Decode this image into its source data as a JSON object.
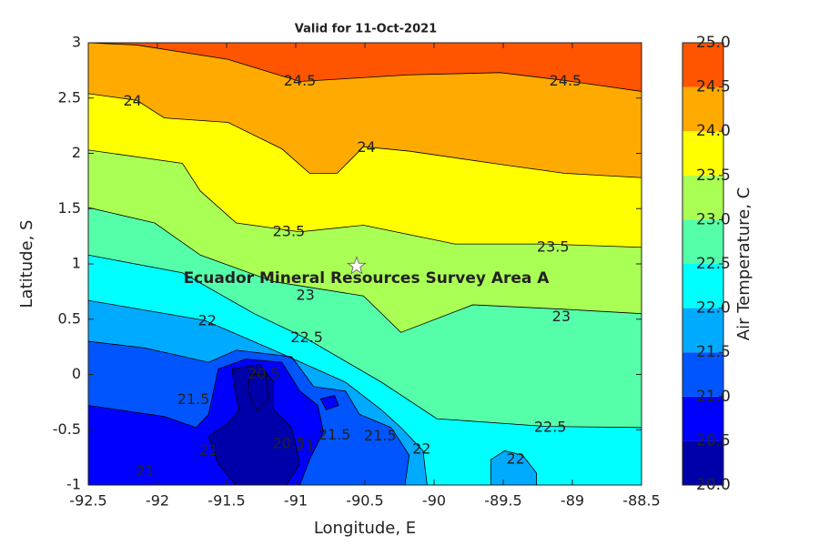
{
  "chart_data": {
    "type": "contour",
    "title": "Valid for 11-Oct-2021",
    "xlabel": "Longitude, E",
    "ylabel": "Latitude, S",
    "colorbar_label": "Air Temperature, C",
    "xlim": [
      -92.5,
      -88.5
    ],
    "ylim": [
      -1,
      3
    ],
    "xticks": [
      -92.5,
      -92,
      -91.5,
      -91,
      -90.5,
      -90,
      -89.5,
      -89,
      -88.5
    ],
    "yticks": [
      -1,
      -0.5,
      0,
      0.5,
      1,
      1.5,
      2,
      2.5,
      3
    ],
    "clim": [
      20,
      25
    ],
    "cticks": [
      {
        "value": 20,
        "label": "20.0"
      },
      {
        "value": 20.5,
        "label": "20.5"
      },
      {
        "value": 21,
        "label": "21.0"
      },
      {
        "value": 21.5,
        "label": "21.5"
      },
      {
        "value": 22,
        "label": "22.0"
      },
      {
        "value": 22.5,
        "label": "22.5"
      },
      {
        "value": 23,
        "label": "23.0"
      },
      {
        "value": 23.5,
        "label": "23.5"
      },
      {
        "value": 24,
        "label": "24.0"
      },
      {
        "value": 24.5,
        "label": "24.5"
      },
      {
        "value": 25,
        "label": "25.0"
      }
    ],
    "levels": [
      20,
      20.5,
      21,
      21.5,
      22,
      22.5,
      23,
      23.5,
      24,
      24.5,
      25
    ],
    "colors": [
      "#0000aa",
      "#0000ff",
      "#0055ff",
      "#00aaff",
      "#00ffff",
      "#55ffaa",
      "#aaff55",
      "#ffff00",
      "#ffaa00",
      "#ff5500"
    ],
    "contours": [
      {
        "level": 22,
        "closed": false,
        "lon": [
          -92.5,
          -91.66,
          -91.16,
          -90.64,
          -90.38,
          -90.24,
          -90.08,
          -90.05
        ],
        "lat": [
          0.67,
          0.49,
          0.22,
          -0.07,
          -0.32,
          -0.48,
          -0.69,
          -1.0
        ]
      },
      {
        "level": 22.5,
        "closed": false,
        "lon": [
          -92.5,
          -91.82,
          -91.3,
          -90.93,
          -90.38,
          -89.98,
          -89.19,
          -88.5
        ],
        "lat": [
          1.08,
          0.92,
          0.55,
          0.33,
          -0.07,
          -0.4,
          -0.47,
          -0.48
        ]
      },
      {
        "level": 23,
        "closed": false,
        "lon": [
          -92.5,
          -92.02,
          -91.69,
          -91.16,
          -90.51,
          -90.24,
          -89.72,
          -89.06,
          -88.5
        ],
        "lat": [
          1.51,
          1.37,
          1.08,
          0.84,
          0.71,
          0.38,
          0.63,
          0.59,
          0.55
        ]
      },
      {
        "level": 23.5,
        "closed": false,
        "lon": [
          -92.5,
          -91.82,
          -91.69,
          -91.43,
          -90.97,
          -90.51,
          -89.85,
          -89.19,
          -88.5
        ],
        "lat": [
          2.03,
          1.91,
          1.66,
          1.37,
          1.29,
          1.35,
          1.18,
          1.18,
          1.15
        ]
      },
      {
        "level": 24,
        "closed": false,
        "lon": [
          -92.5,
          -92.15,
          -91.95,
          -91.49,
          -91.1,
          -90.9,
          -90.7,
          -90.51,
          -90.18,
          -89.52,
          -89.06,
          -88.5
        ],
        "lat": [
          2.54,
          2.48,
          2.32,
          2.28,
          2.04,
          1.82,
          1.82,
          2.06,
          2.02,
          1.9,
          1.82,
          1.78
        ]
      },
      {
        "level": 24.5,
        "closed": false,
        "lon": [
          -92.5,
          -92.15,
          -91.49,
          -90.97,
          -90.18,
          -89.52,
          -89.06,
          -88.5
        ],
        "lat": [
          3.0,
          2.98,
          2.85,
          2.65,
          2.71,
          2.73,
          2.66,
          2.56
        ]
      },
      {
        "level": 22,
        "closed": true,
        "lon": [
          -89.59,
          -89.59,
          -89.49,
          -89.36,
          -89.26,
          -89.26
        ],
        "lat": [
          -1.0,
          -0.77,
          -0.69,
          -0.73,
          -0.89,
          -1.0
        ]
      },
      {
        "level": 21.5,
        "closed": true,
        "lon": [
          -92.5,
          -92.09,
          -91.63,
          -91.43,
          -91.03,
          -90.87,
          -90.64,
          -90.54,
          -90.31,
          -90.18,
          -90.21,
          -92.5
        ],
        "lat": [
          0.3,
          0.24,
          0.11,
          0.22,
          0.16,
          -0.11,
          -0.15,
          -0.36,
          -0.48,
          -0.73,
          -1.0,
          -1.0
        ]
      },
      {
        "level": 21,
        "closed": true,
        "lon": [
          -92.5,
          -91.95,
          -91.72,
          -91.63,
          -91.56,
          -91.36,
          -91.1,
          -90.97,
          -90.84,
          -90.8,
          -90.9,
          -90.97,
          -92.5
        ],
        "lat": [
          -0.28,
          -0.38,
          -0.48,
          -0.36,
          0.05,
          0.14,
          0.11,
          -0.15,
          -0.28,
          -0.52,
          -0.77,
          -1.0,
          -1.0
        ]
      },
      {
        "level": 21,
        "closed": true,
        "lon": [
          -90.82,
          -90.72,
          -90.69,
          -90.78
        ],
        "lat": [
          -0.22,
          -0.19,
          -0.28,
          -0.32
        ]
      },
      {
        "level": 20.5,
        "closed": true,
        "lon": [
          -91.46,
          -91.26,
          -91.16,
          -91.16,
          -91.03,
          -90.97,
          -91.07,
          -91.43,
          -91.56,
          -91.63,
          -91.49,
          -91.41,
          -91.44
        ],
        "lat": [
          0.05,
          0.09,
          -0.07,
          -0.32,
          -0.48,
          -0.81,
          -1.0,
          -1.0,
          -0.81,
          -0.56,
          -0.44,
          -0.32,
          -0.15
        ]
      },
      {
        "level": 20,
        "closed": true,
        "lon": [
          -91.33,
          -91.21,
          -91.2,
          -91.28,
          -91.35
        ],
        "lat": [
          0.0,
          0.0,
          -0.23,
          -0.33,
          -0.15
        ]
      }
    ],
    "contour_labels": [
      {
        "text": "24.5",
        "lon": -90.97,
        "lat": 2.65
      },
      {
        "text": "24.5",
        "lon": -89.05,
        "lat": 2.65
      },
      {
        "text": "24",
        "lon": -92.18,
        "lat": 2.47
      },
      {
        "text": "24",
        "lon": -90.49,
        "lat": 2.05
      },
      {
        "text": "23.5",
        "lon": -91.05,
        "lat": 1.29
      },
      {
        "text": "23.5",
        "lon": -89.14,
        "lat": 1.15
      },
      {
        "text": "23",
        "lon": -90.93,
        "lat": 0.71
      },
      {
        "text": "23",
        "lon": -89.08,
        "lat": 0.52
      },
      {
        "text": "22.5",
        "lon": -90.92,
        "lat": 0.33
      },
      {
        "text": "22.5",
        "lon": -89.16,
        "lat": -0.48
      },
      {
        "text": "22",
        "lon": -91.64,
        "lat": 0.48
      },
      {
        "text": "22",
        "lon": -90.09,
        "lat": -0.68
      },
      {
        "text": "22",
        "lon": -89.41,
        "lat": -0.77
      },
      {
        "text": "21.5",
        "lon": -91.74,
        "lat": -0.23
      },
      {
        "text": "21.5",
        "lon": -90.72,
        "lat": -0.55
      },
      {
        "text": "21.5",
        "lon": -90.39,
        "lat": -0.56
      },
      {
        "text": "21",
        "lon": -92.09,
        "lat": -0.88
      },
      {
        "text": "21",
        "lon": -91.63,
        "lat": -0.69
      },
      {
        "text": "21",
        "lon": -90.93,
        "lat": -0.65
      },
      {
        "text": "20.5",
        "lon": -91.23,
        "lat": 0.0
      },
      {
        "text": "20.5",
        "lon": -91.05,
        "lat": -0.63
      }
    ],
    "annotation": {
      "text": "Ecuador Mineral Resources Survey Area A",
      "lon": -90.49,
      "lat": 0.87
    },
    "marker": {
      "lon": -90.56,
      "lat": 0.98
    }
  }
}
